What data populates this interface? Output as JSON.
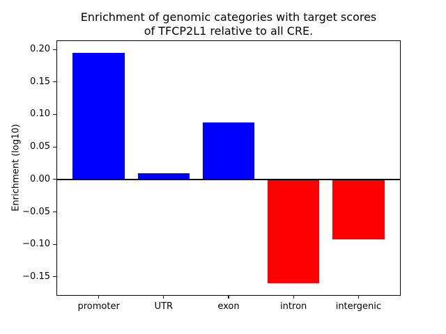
{
  "window": {
    "background": "#ffffff"
  },
  "chart_data": {
    "type": "bar",
    "title": "Enrichment of genomic categories with target scores\nof TFCP2L1 relative to all CRE.",
    "xlabel": "",
    "ylabel": "Enrichment (log10)",
    "categories": [
      "promoter",
      "UTR",
      "exon",
      "intron",
      "intergenic"
    ],
    "values": [
      0.195,
      0.009,
      0.088,
      -0.16,
      -0.092
    ],
    "bar_colors": [
      "#0000ff",
      "#0000ff",
      "#0000ff",
      "#ff0000",
      "#ff0000"
    ],
    "positive_color": "#0000ff",
    "negative_color": "#ff0000",
    "bar_width_fraction": 0.8,
    "xlim": [
      -0.64,
      4.64
    ],
    "ylim": [
      -0.178,
      0.213
    ],
    "yticks": [
      0.2,
      0.15,
      0.1,
      0.05,
      0.0,
      -0.05,
      -0.1,
      -0.15
    ],
    "ytick_labels": [
      "0.20",
      "0.15",
      "0.10",
      "0.05",
      "0.00",
      "−0.05",
      "−0.10",
      "−0.15"
    ],
    "zero_line": true,
    "grid": false,
    "legend": null,
    "axes_color": "#000000",
    "text_color": "#000000"
  }
}
